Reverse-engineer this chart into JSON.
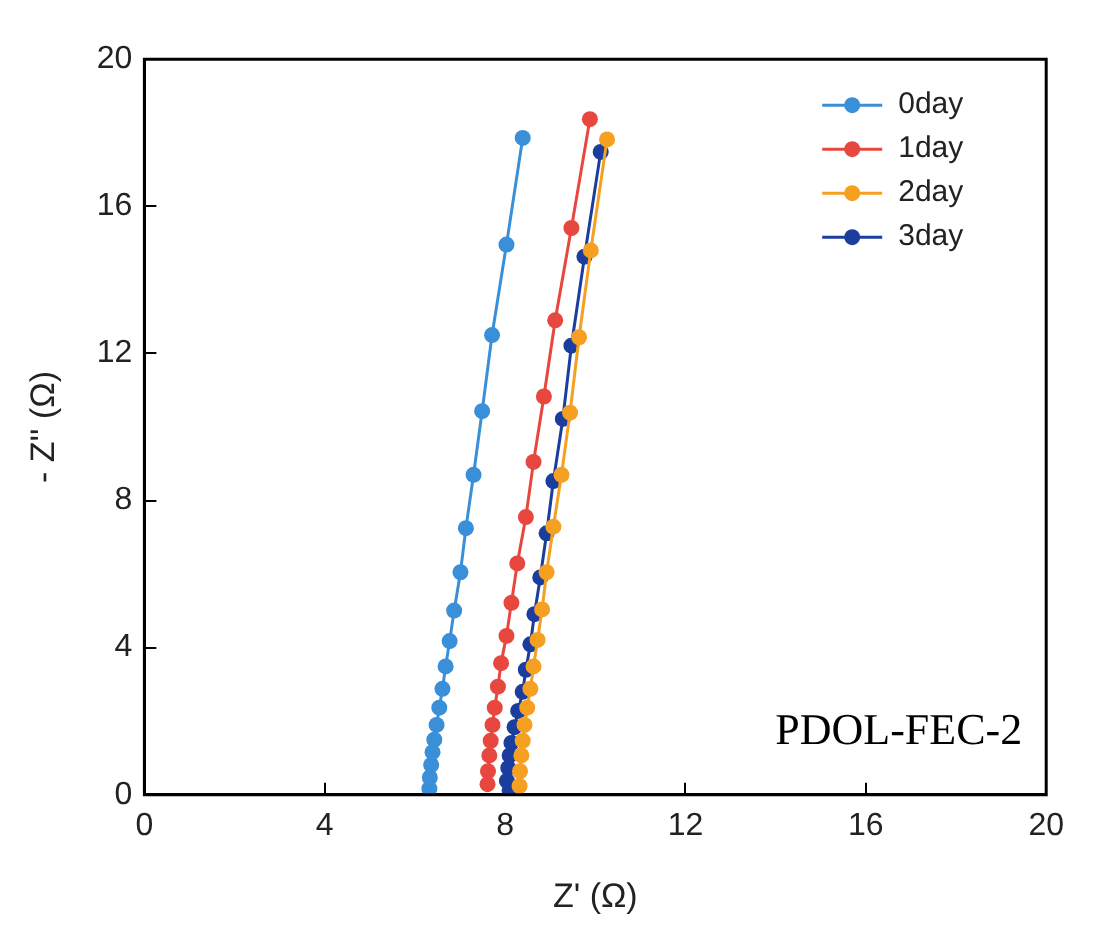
{
  "chart_data": {
    "type": "line",
    "xlabel": "Z' (Ω)",
    "ylabel": "- Z'' (Ω)",
    "xlim": [
      0,
      20
    ],
    "xticks": [
      0,
      4,
      8,
      12,
      16,
      20
    ],
    "ylim": [
      0,
      20
    ],
    "yticks": [
      0,
      4,
      8,
      12,
      16,
      20
    ],
    "grid": false,
    "legend": "top right",
    "marker": "circle",
    "line_style": "solid",
    "annotations": [
      "PDOL-FEC-2"
    ],
    "series": [
      {
        "name": "0day",
        "color": "#3a8fd9",
        "x": [
          6.32,
          6.33,
          6.36,
          6.39,
          6.43,
          6.48,
          6.54,
          6.61,
          6.68,
          6.77,
          6.87,
          7.01,
          7.13,
          7.3,
          7.49,
          7.71,
          8.03,
          8.39
        ],
        "values": [
          0.17,
          0.47,
          0.81,
          1.16,
          1.5,
          1.9,
          2.37,
          2.88,
          3.49,
          4.18,
          5.01,
          6.05,
          7.25,
          8.7,
          10.43,
          12.5,
          14.96,
          17.86
        ]
      },
      {
        "name": "1day",
        "color": "#e8473f",
        "x": [
          7.61,
          7.62,
          7.65,
          7.68,
          7.72,
          7.77,
          7.84,
          7.91,
          8.03,
          8.14,
          8.27,
          8.46,
          8.63,
          8.86,
          9.11,
          9.47,
          9.88
        ],
        "values": [
          0.29,
          0.64,
          1.07,
          1.47,
          1.9,
          2.37,
          2.94,
          3.58,
          4.32,
          5.22,
          6.29,
          7.55,
          9.05,
          10.83,
          12.9,
          15.41,
          18.37
        ]
      },
      {
        "name": "2day",
        "color": "#f5a020",
        "x": [
          8.32,
          8.33,
          8.36,
          8.39,
          8.43,
          8.49,
          8.56,
          8.63,
          8.72,
          8.82,
          8.92,
          9.07,
          9.25,
          9.44,
          9.64,
          9.9,
          10.26
        ],
        "values": [
          0.24,
          0.64,
          1.07,
          1.47,
          1.9,
          2.37,
          2.88,
          3.49,
          4.21,
          5.04,
          6.05,
          7.29,
          8.7,
          10.39,
          12.44,
          14.8,
          17.82
        ]
      },
      {
        "name": "3day",
        "color": "#1a3d9e",
        "x": [
          8.1,
          8.04,
          8.07,
          8.1,
          8.14,
          8.21,
          8.29,
          8.39,
          8.46,
          8.56,
          8.65,
          8.78,
          8.92,
          9.07,
          9.28,
          9.47,
          9.76,
          10.12
        ],
        "values": [
          0.12,
          0.38,
          0.73,
          1.07,
          1.41,
          1.84,
          2.28,
          2.8,
          3.4,
          4.09,
          4.91,
          5.91,
          7.11,
          8.53,
          10.22,
          12.21,
          14.63,
          17.48
        ]
      }
    ]
  }
}
